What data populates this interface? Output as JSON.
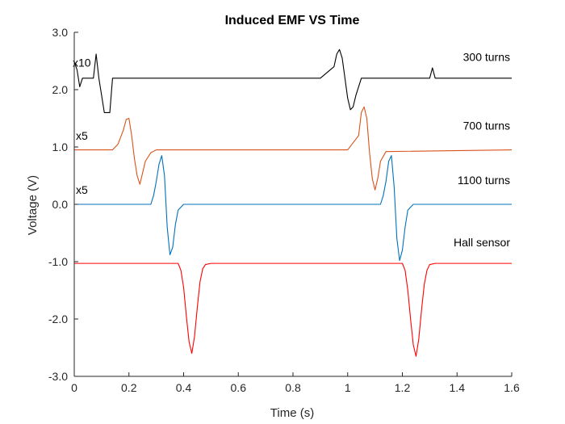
{
  "chart_data": {
    "type": "line",
    "title": "Induced EMF VS Time",
    "xlabel": "Time (s)",
    "ylabel": "Voltage (V)",
    "xlim": [
      0,
      1.6
    ],
    "ylim": [
      -3.0,
      3.0
    ],
    "xticks": [
      0,
      0.2,
      0.4,
      0.6,
      0.8,
      1,
      1.2,
      1.4,
      1.6
    ],
    "xtick_labels": [
      "0",
      "0.2",
      "0.4",
      "0.6",
      "0.8",
      "1",
      "1.2",
      "1.4",
      "1.6"
    ],
    "yticks": [
      3.0,
      2.0,
      1.0,
      0.0,
      -1.0,
      -2.0,
      -3.0
    ],
    "ytick_labels": [
      "3.0",
      "2.0",
      "1.0",
      "0.0",
      "-1.0",
      "-2.0",
      "-3.0"
    ],
    "grid": false,
    "series": [
      {
        "name": "300 turns",
        "color": "#000000",
        "x": [
          0,
          0.01,
          0.02,
          0.03,
          0.05,
          0.07,
          0.08,
          0.09,
          0.1,
          0.11,
          0.12,
          0.13,
          0.14,
          0.5,
          0.9,
          0.95,
          0.96,
          0.97,
          0.98,
          0.99,
          1.0,
          1.01,
          1.02,
          1.03,
          1.04,
          1.05,
          1.3,
          1.31,
          1.32,
          1.33,
          1.6
        ],
        "y": [
          2.48,
          2.35,
          2.05,
          2.2,
          2.2,
          2.2,
          2.62,
          2.2,
          1.9,
          1.6,
          1.6,
          1.6,
          2.2,
          2.2,
          2.2,
          2.4,
          2.62,
          2.7,
          2.55,
          2.2,
          1.85,
          1.65,
          1.7,
          1.9,
          2.05,
          2.2,
          2.2,
          2.38,
          2.2,
          2.2,
          2.2
        ],
        "label": "300 turns",
        "scale_label": "x10"
      },
      {
        "name": "700 turns",
        "color": "#d95319",
        "x": [
          0,
          0.14,
          0.16,
          0.18,
          0.19,
          0.2,
          0.21,
          0.22,
          0.23,
          0.24,
          0.25,
          0.26,
          0.28,
          0.3,
          0.5,
          1.0,
          1.04,
          1.05,
          1.06,
          1.07,
          1.08,
          1.09,
          1.1,
          1.11,
          1.12,
          1.14,
          1.6
        ],
        "y": [
          0.95,
          0.95,
          1.05,
          1.3,
          1.48,
          1.5,
          1.2,
          0.8,
          0.5,
          0.35,
          0.55,
          0.75,
          0.9,
          0.95,
          0.95,
          0.95,
          1.2,
          1.6,
          1.7,
          1.5,
          0.9,
          0.45,
          0.25,
          0.45,
          0.75,
          0.92,
          0.95
        ],
        "label": "700 turns",
        "scale_label": "x5"
      },
      {
        "name": "1100 turns",
        "color": "#0072bd",
        "x": [
          0,
          0.28,
          0.29,
          0.3,
          0.31,
          0.32,
          0.33,
          0.34,
          0.35,
          0.36,
          0.37,
          0.38,
          0.4,
          0.6,
          1.12,
          1.13,
          1.14,
          1.15,
          1.16,
          1.17,
          1.18,
          1.19,
          1.2,
          1.21,
          1.22,
          1.24,
          1.6
        ],
        "y": [
          0.0,
          0.0,
          0.15,
          0.4,
          0.7,
          0.85,
          0.5,
          -0.4,
          -0.88,
          -0.75,
          -0.35,
          -0.1,
          0.0,
          0.0,
          0.0,
          0.15,
          0.4,
          0.75,
          0.85,
          0.3,
          -0.6,
          -0.98,
          -0.8,
          -0.4,
          -0.1,
          0.0,
          0.0
        ],
        "label": "1100 turns",
        "scale_label": "x5"
      },
      {
        "name": "Hall sensor",
        "color": "#ff0000",
        "x": [
          0,
          0.38,
          0.39,
          0.4,
          0.41,
          0.42,
          0.43,
          0.44,
          0.45,
          0.46,
          0.47,
          0.48,
          0.5,
          1.2,
          1.21,
          1.22,
          1.23,
          1.24,
          1.25,
          1.26,
          1.27,
          1.28,
          1.29,
          1.3,
          1.32,
          1.6
        ],
        "y": [
          -1.03,
          -1.03,
          -1.15,
          -1.45,
          -1.95,
          -2.4,
          -2.6,
          -2.3,
          -1.8,
          -1.35,
          -1.12,
          -1.05,
          -1.03,
          -1.03,
          -1.15,
          -1.5,
          -2.0,
          -2.45,
          -2.65,
          -2.35,
          -1.85,
          -1.4,
          -1.15,
          -1.05,
          -1.03,
          -1.03
        ],
        "label": "Hall sensor"
      }
    ]
  }
}
